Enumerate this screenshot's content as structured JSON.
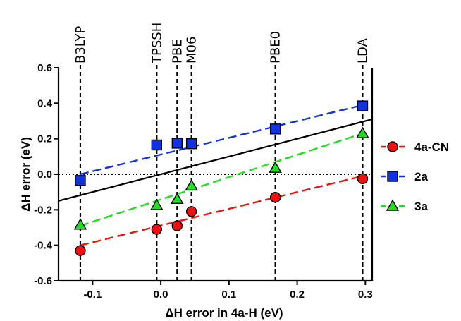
{
  "chart_data": {
    "type": "scatter",
    "xlabel": "ΔH error in 4a-H (eV)",
    "ylabel": "ΔH error (eV)",
    "xlim": [
      -0.15,
      0.31
    ],
    "ylim": [
      -0.6,
      0.6
    ],
    "xticks": [
      -0.1,
      0.0,
      0.1,
      0.2,
      0.3
    ],
    "xtick_labels": [
      "-0.1",
      "0.0",
      "0.1",
      "0.2",
      "0.3"
    ],
    "yticks": [
      -0.6,
      -0.4,
      -0.2,
      0.0,
      0.2,
      0.4,
      0.6
    ],
    "ytick_labels": [
      "-0.6",
      "-0.4",
      "-0.2",
      "0.0",
      "0.2",
      "0.4",
      "0.6"
    ],
    "zero_line": "dotted",
    "identity_line": true,
    "grid": false,
    "legend_position": "right",
    "methods": [
      {
        "name": "B3LYP",
        "x": -0.118
      },
      {
        "name": "TPSSH",
        "x": -0.006
      },
      {
        "name": "PBE",
        "x": 0.024
      },
      {
        "name": "M06",
        "x": 0.045
      },
      {
        "name": "PBE0",
        "x": 0.168
      },
      {
        "name": "LDA",
        "x": 0.296
      }
    ],
    "series": [
      {
        "name": "4a-CN",
        "color": "#ee1111",
        "marker": "circle",
        "points": [
          [
            -0.118,
            -0.43
          ],
          [
            -0.006,
            -0.31
          ],
          [
            0.024,
            -0.29
          ],
          [
            0.045,
            -0.21
          ],
          [
            0.168,
            -0.13
          ],
          [
            0.296,
            -0.025
          ]
        ],
        "fit": [
          [
            -0.118,
            -0.4
          ],
          [
            0.296,
            -0.01
          ]
        ]
      },
      {
        "name": "2a",
        "color": "#1133dd",
        "marker": "square",
        "points": [
          [
            -0.118,
            -0.035
          ],
          [
            -0.006,
            0.165
          ],
          [
            0.024,
            0.175
          ],
          [
            0.045,
            0.172
          ],
          [
            0.168,
            0.255
          ],
          [
            0.296,
            0.385
          ]
        ],
        "fit": [
          [
            -0.118,
            0.0
          ],
          [
            0.296,
            0.39
          ]
        ]
      },
      {
        "name": "3a",
        "color": "#22dd22",
        "marker": "triangle",
        "points": [
          [
            -0.118,
            -0.285
          ],
          [
            -0.006,
            -0.175
          ],
          [
            0.024,
            -0.14
          ],
          [
            0.045,
            -0.065
          ],
          [
            0.168,
            0.035
          ],
          [
            0.296,
            0.23
          ]
        ],
        "fit": [
          [
            -0.118,
            -0.29
          ],
          [
            0.296,
            0.23
          ]
        ]
      }
    ]
  }
}
